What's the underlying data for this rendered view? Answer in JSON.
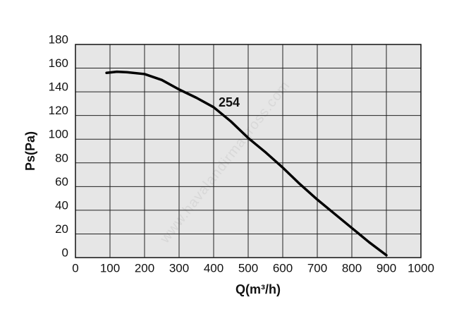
{
  "chart_data": {
    "type": "line",
    "x_label": "Q(m³/h)",
    "y_label": "Ps(Pa)",
    "annotation": "254",
    "watermark": "www.havalandirmagross.com",
    "x": [
      90,
      120,
      150,
      200,
      250,
      300,
      350,
      400,
      450,
      500,
      550,
      600,
      650,
      700,
      750,
      800,
      850,
      900
    ],
    "series": [
      {
        "name": "254",
        "color": "#000000",
        "values": [
          156,
          157,
          156.5,
          155,
          150,
          142,
          135,
          127,
          115,
          101,
          89,
          76,
          62,
          49,
          37,
          25,
          13,
          2
        ]
      }
    ],
    "xlim": [
      0,
      1000
    ],
    "xticks": [
      0,
      100,
      200,
      300,
      400,
      500,
      600,
      700,
      800,
      900,
      1000
    ],
    "ylim": [
      0,
      180
    ],
    "yticks": [
      0,
      20,
      40,
      60,
      80,
      100,
      120,
      140,
      160,
      180
    ],
    "grid": true,
    "plot_background": "#e6e6e6"
  }
}
